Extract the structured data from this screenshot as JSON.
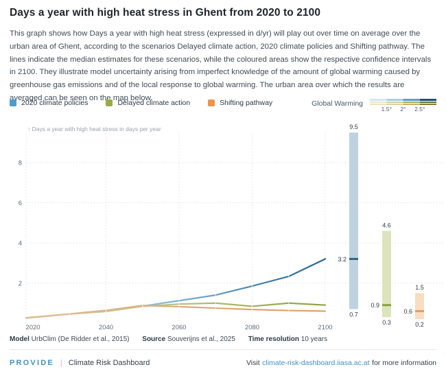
{
  "header": {
    "title": "Days a year with high heat stress in Ghent from 2020 to 2100",
    "description": "This graph shows how Days a year with high heat stress (expressed in d/yr) will play out over time on average over the urban area of Ghent, according to the scenarios Delayed climate action, 2020 climate policies and Shifting pathway. The lines indicate the median estimates for these scenarios, while the coloured areas show the respective confidence intervals in 2100. They illustrate model uncertainty arising from imperfect knowledge of the amount of global warming caused by greenhouse gas emissions and of the local response to global warming. The urban area over which the results are averaged can be seen on the map below."
  },
  "legend": {
    "items": [
      {
        "label": "2020 climate policies",
        "color": "#4a9dcc"
      },
      {
        "label": "Delayed climate action",
        "color": "#98ab47"
      },
      {
        "label": "Shifting pathway",
        "color": "#e9954d"
      }
    ]
  },
  "warming_legend": {
    "label": "Global Warming",
    "ticks": [
      "1.5°",
      "2°",
      "2.5°"
    ],
    "scale_rows": [
      {
        "name": "2020 climate policies",
        "colors": [
          "#d6e7ee",
          "#a9cfdf",
          "#5e9dc4",
          "#1d5073"
        ]
      },
      {
        "name": "Delayed climate action",
        "colors": [
          "#e8e5c8",
          "#ccd09e",
          "#9fab58",
          "#5f7030"
        ]
      },
      {
        "name": "Shifting pathway",
        "colors": [
          "#f0e2c0",
          "#e2cf9e",
          "#c8ab67",
          "#8c7634"
        ]
      }
    ]
  },
  "chart_data": {
    "type": "line",
    "title": "Days a year with high heat stress in Ghent from 2020 to 2100",
    "ylabel_annotation": "↑ Days a year with high heat stress in days per year",
    "x": [
      2020,
      2030,
      2040,
      2050,
      2060,
      2070,
      2080,
      2090,
      2100
    ],
    "xtick_years": [
      2020,
      2040,
      2060,
      2080,
      2100
    ],
    "xtick_labels": [
      "2020",
      "2040",
      "2060",
      "2080",
      "2100"
    ],
    "ytick_values": [
      2,
      4,
      6,
      8
    ],
    "ylim": [
      0,
      9.8
    ],
    "grid": "dotted",
    "legend_position": "top",
    "series": [
      {
        "name": "2020 climate policies",
        "values": [
          0.3,
          0.45,
          0.62,
          0.85,
          1.12,
          1.4,
          1.85,
          2.33,
          3.2
        ],
        "gradient": [
          "#d9c9a4",
          "#8ebedb",
          "#1d5f8e"
        ]
      },
      {
        "name": "Delayed climate action",
        "values": [
          0.3,
          0.46,
          0.58,
          0.84,
          0.95,
          1.0,
          0.84,
          1.0,
          0.9
        ],
        "gradient": [
          "#d9c9a4",
          "#bcc68b",
          "#89a23e"
        ]
      },
      {
        "name": "Shifting pathway",
        "values": [
          0.28,
          0.46,
          0.64,
          0.88,
          0.82,
          0.75,
          0.68,
          0.63,
          0.6
        ],
        "gradient": [
          "#dcc09a",
          "#e0ae79",
          "#dd9e62"
        ]
      }
    ],
    "confidence_2100": [
      {
        "series": "2020 climate policies",
        "low": 0.7,
        "median": 3.2,
        "high": 9.5,
        "fill": "#bed3df",
        "median_color": "#26688f"
      },
      {
        "series": "Delayed climate action",
        "low": 0.3,
        "median": 0.9,
        "high": 4.6,
        "fill": "#dde3bb",
        "median_color": "#87a13d"
      },
      {
        "series": "Shifting pathway",
        "low": 0.2,
        "median": 0.6,
        "high": 1.5,
        "fill": "#f9ddc2",
        "median_color": "#df9e62"
      }
    ]
  },
  "footer": {
    "model_label": "Model",
    "model_value": "UrbClim (De Ridder et al., 2015)",
    "source_label": "Source",
    "source_value": "Souverijns et al., 2025",
    "time_label": "Time resolution",
    "time_value": "10 years"
  },
  "bottombar": {
    "brand": "PROVIDE",
    "separator": "|",
    "product": "Climate Risk Dashboard",
    "visit_prefix": "Visit",
    "link": "climate-risk-dashboard.iiasa.ac.at",
    "visit_suffix": "for more information"
  }
}
